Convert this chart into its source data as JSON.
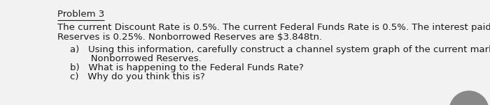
{
  "title": "Problem 3",
  "background_color": "#f2f2f2",
  "text_color": "#1a1a1a",
  "body_line1": "The current Discount Rate is 0.5%. The current Federal Funds Rate is 0.5%. The interest paid on Excess",
  "body_line2": "Reserves is 0.25%. Nonborrowed Reserves are $3.848tn.",
  "item_a1": "a)   Using this information, carefully construct a channel system graph of the current market for",
  "item_a2": "       Nonborrowed Reserves.",
  "item_b": "b)   What is happening to the Federal Funds Rate?",
  "item_c": "c)   Why do you think this is?",
  "fontsize": 9.5,
  "title_fontsize": 9.5,
  "bg_circle_color": "#888888"
}
